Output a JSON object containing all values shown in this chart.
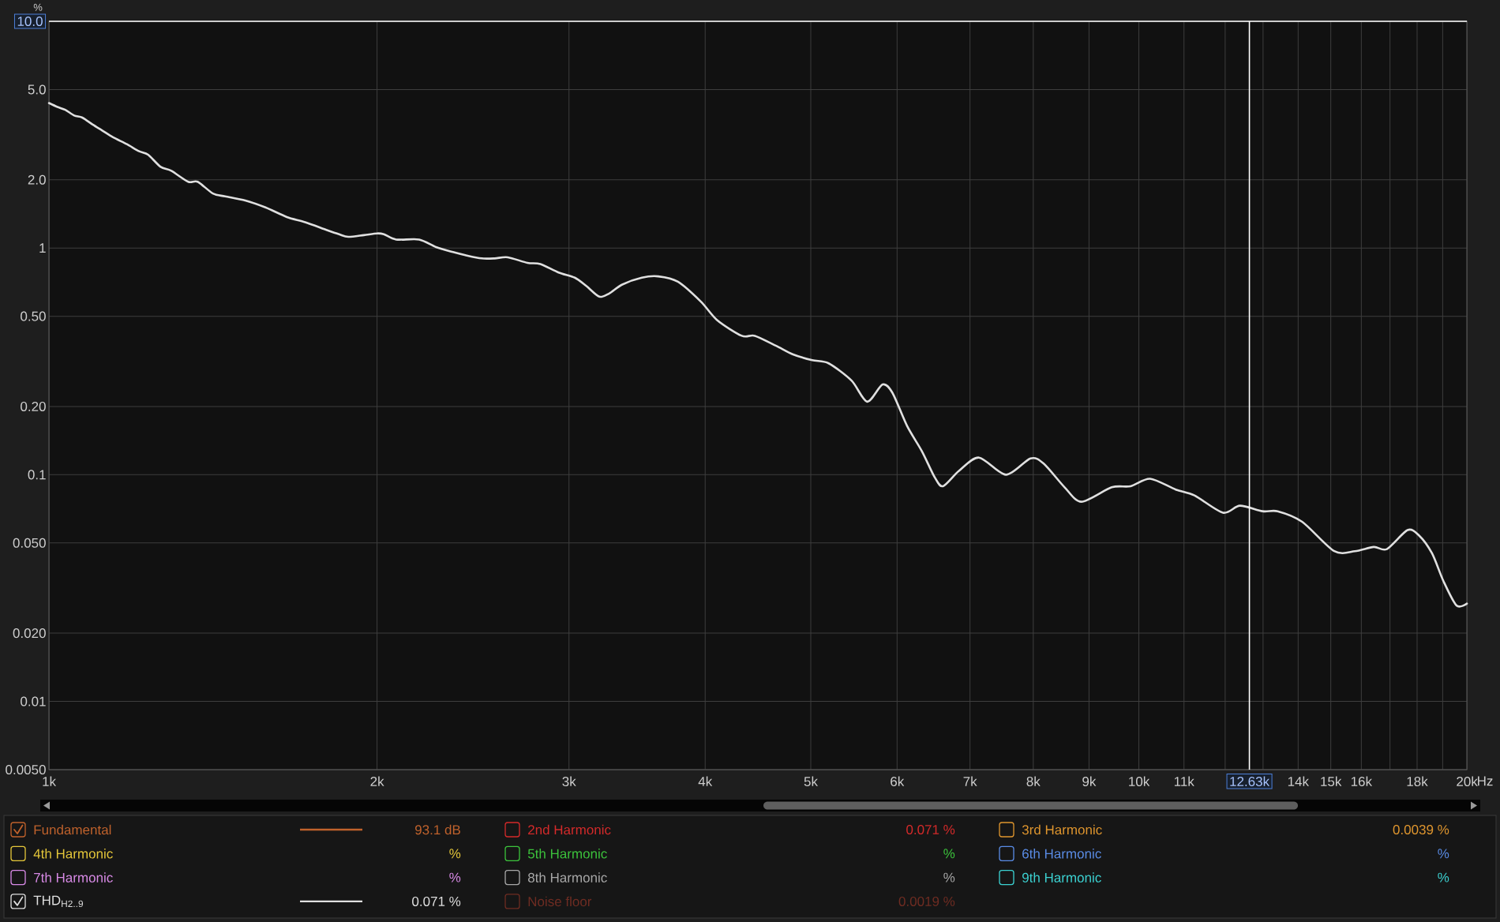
{
  "chart_data": {
    "type": "line",
    "log": "xy",
    "grid": true,
    "legend": "bottom",
    "xlabel": "Hz",
    "ylabel": "%",
    "x": [
      1000,
      1018,
      1035,
      1055,
      1073,
      1097,
      1119,
      1145,
      1179,
      1210,
      1233,
      1266,
      1295,
      1342,
      1369,
      1414,
      1451,
      1514,
      1580,
      1653,
      1718,
      1799,
      1846,
      1882,
      1945,
      2000,
      2029,
      2082,
      2186,
      2265,
      2348,
      2410,
      2494,
      2564,
      2636,
      2748,
      2824,
      2935,
      3037,
      3112,
      3199,
      3266,
      3357,
      3499,
      3623,
      3777,
      3965,
      4104,
      4322,
      4443,
      4648,
      4811,
      5015,
      5192,
      5450,
      5633,
      5819,
      5941,
      6129,
      6323,
      6500,
      6612,
      6838,
      7134,
      7553,
      7955,
      8178,
      8548,
      8858,
      9441,
      9824,
      10240,
      10811,
      11247,
      11944,
      12380,
      12988,
      13408,
      14119,
      15112,
      15786,
      16427,
      16890,
      17643,
      18072,
      18579,
      19031,
      19565,
      20000
    ],
    "xlim": [
      1000,
      20000
    ],
    "ylim": [
      0.005,
      10
    ],
    "xticks": [
      {
        "value": 1000,
        "label": "1k"
      },
      {
        "value": 2000,
        "label": "2k"
      },
      {
        "value": 3000,
        "label": "3k"
      },
      {
        "value": 4000,
        "label": "4k"
      },
      {
        "value": 5000,
        "label": "5k"
      },
      {
        "value": 6000,
        "label": "6k"
      },
      {
        "value": 7000,
        "label": "7k"
      },
      {
        "value": 8000,
        "label": "8k"
      },
      {
        "value": 9000,
        "label": "9k"
      },
      {
        "value": 10000,
        "label": "10k"
      },
      {
        "value": 11000,
        "label": "11k"
      },
      {
        "value": 12000,
        "label": null
      },
      {
        "value": 13000,
        "label": null
      },
      {
        "value": 14000,
        "label": "14k"
      },
      {
        "value": 15000,
        "label": "15k"
      },
      {
        "value": 16000,
        "label": "16k"
      },
      {
        "value": 17000,
        "label": null
      },
      {
        "value": 18000,
        "label": "18k"
      },
      {
        "value": 19000,
        "label": null
      },
      {
        "value": 20000,
        "label": "20k"
      }
    ],
    "yticks": [
      {
        "value": 0.005,
        "label": "0.0050"
      },
      0.01,
      {
        "value": 0.02,
        "label": "0.020"
      },
      {
        "value": 0.05,
        "label": "0.050"
      },
      0.1,
      {
        "value": 0.2,
        "label": "0.20"
      },
      {
        "value": 0.5,
        "label": "0.50"
      },
      1,
      {
        "value": 2,
        "label": "2.0"
      },
      {
        "value": 5,
        "label": "5.0"
      }
    ],
    "series": [
      {
        "name": "Fundamental",
        "color": "#c0622c",
        "line_style": "solid",
        "values": [
          null,
          null,
          null,
          null,
          null,
          null,
          null,
          null,
          null,
          null,
          null,
          null,
          null,
          null,
          null,
          null,
          null,
          null,
          null,
          null,
          null,
          null,
          null,
          null,
          null,
          null,
          null,
          null,
          null,
          null,
          null,
          null,
          null,
          null,
          null,
          null,
          null,
          null,
          null,
          null,
          null,
          null,
          null,
          null,
          null,
          null,
          null,
          null,
          null,
          null,
          null,
          null,
          null,
          null,
          null,
          null,
          null,
          null,
          null,
          null,
          null,
          null,
          null,
          null,
          null,
          null,
          null,
          null,
          null,
          null,
          null,
          null,
          null,
          null,
          null,
          null,
          null,
          null,
          null,
          null,
          null,
          null,
          null,
          null,
          null,
          null,
          null,
          null,
          null
        ]
      },
      {
        "name": "2nd Harmonic",
        "color": "#d42a2a",
        "values": [
          null,
          null,
          null,
          null,
          null,
          null,
          null,
          null,
          null,
          null,
          null,
          null,
          null,
          null,
          null,
          null,
          null,
          null,
          null,
          null,
          null,
          null,
          null,
          null,
          null,
          null,
          null,
          null,
          null,
          null,
          null,
          null,
          null,
          null,
          null,
          null,
          null,
          null,
          null,
          null,
          null,
          null,
          null,
          null,
          null,
          null,
          null,
          null,
          null,
          null,
          null,
          null,
          null,
          null,
          null,
          null,
          null,
          null,
          null,
          null,
          null,
          null,
          null,
          null,
          null,
          null,
          null,
          null,
          null,
          null,
          null,
          null,
          null,
          null,
          null,
          null,
          null,
          null,
          null,
          null,
          null,
          null,
          null,
          null,
          null,
          null,
          null,
          null,
          null
        ]
      },
      {
        "name": "3rd Harmonic",
        "color": "#e0962e",
        "values": [
          null,
          null,
          null,
          null,
          null,
          null,
          null,
          null,
          null,
          null,
          null,
          null,
          null,
          null,
          null,
          null,
          null,
          null,
          null,
          null,
          null,
          null,
          null,
          null,
          null,
          null,
          null,
          null,
          null,
          null,
          null,
          null,
          null,
          null,
          null,
          null,
          null,
          null,
          null,
          null,
          null,
          null,
          null,
          null,
          null,
          null,
          null,
          null,
          null,
          null,
          null,
          null,
          null,
          null,
          null,
          null,
          null,
          null,
          null,
          null,
          null,
          null,
          null,
          null,
          null,
          null,
          null,
          null,
          null,
          null,
          null,
          null,
          null,
          null,
          null,
          null,
          null,
          null,
          null,
          null,
          null,
          null,
          null,
          null,
          null,
          null,
          null,
          null,
          null
        ]
      },
      {
        "name": "4th Harmonic",
        "color": "#e6c83a",
        "values": [
          null,
          null,
          null,
          null,
          null,
          null,
          null,
          null,
          null,
          null,
          null,
          null,
          null,
          null,
          null,
          null,
          null,
          null,
          null,
          null,
          null,
          null,
          null,
          null,
          null,
          null,
          null,
          null,
          null,
          null,
          null,
          null,
          null,
          null,
          null,
          null,
          null,
          null,
          null,
          null,
          null,
          null,
          null,
          null,
          null,
          null,
          null,
          null,
          null,
          null,
          null,
          null,
          null,
          null,
          null,
          null,
          null,
          null,
          null,
          null,
          null,
          null,
          null,
          null,
          null,
          null,
          null,
          null,
          null,
          null,
          null,
          null,
          null,
          null,
          null,
          null,
          null,
          null,
          null,
          null,
          null,
          null,
          null,
          null,
          null,
          null,
          null,
          null,
          null
        ]
      },
      {
        "name": "5th Harmonic",
        "color": "#3cc43c",
        "values": [
          null,
          null,
          null,
          null,
          null,
          null,
          null,
          null,
          null,
          null,
          null,
          null,
          null,
          null,
          null,
          null,
          null,
          null,
          null,
          null,
          null,
          null,
          null,
          null,
          null,
          null,
          null,
          null,
          null,
          null,
          null,
          null,
          null,
          null,
          null,
          null,
          null,
          null,
          null,
          null,
          null,
          null,
          null,
          null,
          null,
          null,
          null,
          null,
          null,
          null,
          null,
          null,
          null,
          null,
          null,
          null,
          null,
          null,
          null,
          null,
          null,
          null,
          null,
          null,
          null,
          null,
          null,
          null,
          null,
          null,
          null,
          null,
          null,
          null,
          null,
          null,
          null,
          null,
          null,
          null,
          null,
          null,
          null,
          null,
          null,
          null,
          null,
          null,
          null
        ]
      },
      {
        "name": "6th Harmonic",
        "color": "#5a8ce6",
        "values": [
          null,
          null,
          null,
          null,
          null,
          null,
          null,
          null,
          null,
          null,
          null,
          null,
          null,
          null,
          null,
          null,
          null,
          null,
          null,
          null,
          null,
          null,
          null,
          null,
          null,
          null,
          null,
          null,
          null,
          null,
          null,
          null,
          null,
          null,
          null,
          null,
          null,
          null,
          null,
          null,
          null,
          null,
          null,
          null,
          null,
          null,
          null,
          null,
          null,
          null,
          null,
          null,
          null,
          null,
          null,
          null,
          null,
          null,
          null,
          null,
          null,
          null,
          null,
          null,
          null,
          null,
          null,
          null,
          null,
          null,
          null,
          null,
          null,
          null,
          null,
          null,
          null,
          null,
          null,
          null,
          null,
          null,
          null,
          null,
          null,
          null,
          null,
          null,
          null
        ]
      },
      {
        "name": "7th Harmonic",
        "color": "#d88ae6",
        "values": [
          null,
          null,
          null,
          null,
          null,
          null,
          null,
          null,
          null,
          null,
          null,
          null,
          null,
          null,
          null,
          null,
          null,
          null,
          null,
          null,
          null,
          null,
          null,
          null,
          null,
          null,
          null,
          null,
          null,
          null,
          null,
          null,
          null,
          null,
          null,
          null,
          null,
          null,
          null,
          null,
          null,
          null,
          null,
          null,
          null,
          null,
          null,
          null,
          null,
          null,
          null,
          null,
          null,
          null,
          null,
          null,
          null,
          null,
          null,
          null,
          null,
          null,
          null,
          null,
          null,
          null,
          null,
          null,
          null,
          null,
          null,
          null,
          null,
          null,
          null,
          null,
          null,
          null,
          null,
          null,
          null,
          null,
          null,
          null,
          null,
          null,
          null,
          null,
          null
        ]
      },
      {
        "name": "8th Harmonic",
        "color": "#a8a8a8",
        "values": [
          null,
          null,
          null,
          null,
          null,
          null,
          null,
          null,
          null,
          null,
          null,
          null,
          null,
          null,
          null,
          null,
          null,
          null,
          null,
          null,
          null,
          null,
          null,
          null,
          null,
          null,
          null,
          null,
          null,
          null,
          null,
          null,
          null,
          null,
          null,
          null,
          null,
          null,
          null,
          null,
          null,
          null,
          null,
          null,
          null,
          null,
          null,
          null,
          null,
          null,
          null,
          null,
          null,
          null,
          null,
          null,
          null,
          null,
          null,
          null,
          null,
          null,
          null,
          null,
          null,
          null,
          null,
          null,
          null,
          null,
          null,
          null,
          null,
          null,
          null,
          null,
          null,
          null,
          null,
          null,
          null,
          null,
          null,
          null,
          null,
          null,
          null,
          null,
          null
        ]
      },
      {
        "name": "9th Harmonic",
        "color": "#3cd2d2",
        "values": [
          null,
          null,
          null,
          null,
          null,
          null,
          null,
          null,
          null,
          null,
          null,
          null,
          null,
          null,
          null,
          null,
          null,
          null,
          null,
          null,
          null,
          null,
          null,
          null,
          null,
          null,
          null,
          null,
          null,
          null,
          null,
          null,
          null,
          null,
          null,
          null,
          null,
          null,
          null,
          null,
          null,
          null,
          null,
          null,
          null,
          null,
          null,
          null,
          null,
          null,
          null,
          null,
          null,
          null,
          null,
          null,
          null,
          null,
          null,
          null,
          null,
          null,
          null,
          null,
          null,
          null,
          null,
          null,
          null,
          null,
          null,
          null,
          null,
          null,
          null,
          null,
          null,
          null,
          null,
          null,
          null,
          null,
          null,
          null,
          null,
          null,
          null,
          null,
          null
        ]
      },
      {
        "name": "THD$_{H2..9}$",
        "color": "#e0e0e0",
        "line_style": "solid",
        "values": [
          4.36,
          4.19,
          4.07,
          3.84,
          3.76,
          3.5,
          3.3,
          3.08,
          2.87,
          2.67,
          2.58,
          2.28,
          2.19,
          1.96,
          1.96,
          1.74,
          1.69,
          1.62,
          1.51,
          1.37,
          1.3,
          1.2,
          1.15,
          1.12,
          1.14,
          1.16,
          1.15,
          1.09,
          1.09,
          1.01,
          0.96,
          0.93,
          0.9,
          0.9,
          0.91,
          0.86,
          0.85,
          0.78,
          0.74,
          0.68,
          0.61,
          0.63,
          0.69,
          0.74,
          0.75,
          0.71,
          0.58,
          0.48,
          0.41,
          0.41,
          0.37,
          0.34,
          0.32,
          0.31,
          0.26,
          0.21,
          0.25,
          0.23,
          0.164,
          0.127,
          0.097,
          0.089,
          0.104,
          0.119,
          0.1,
          0.118,
          0.112,
          0.088,
          0.076,
          0.088,
          0.089,
          0.096,
          0.086,
          0.081,
          0.068,
          0.073,
          0.069,
          0.069,
          0.062,
          0.046,
          0.046,
          0.048,
          0.047,
          0.057,
          0.054,
          0.045,
          0.034,
          0.0265,
          0.027
        ]
      },
      {
        "name": "Noise floor",
        "color": "#6e2c22",
        "values": [
          null,
          null,
          null,
          null,
          null,
          null,
          null,
          null,
          null,
          null,
          null,
          null,
          null,
          null,
          null,
          null,
          null,
          null,
          null,
          null,
          null,
          null,
          null,
          null,
          null,
          null,
          null,
          null,
          null,
          null,
          null,
          null,
          null,
          null,
          null,
          null,
          null,
          null,
          null,
          null,
          null,
          null,
          null,
          null,
          null,
          null,
          null,
          null,
          null,
          null,
          null,
          null,
          null,
          null,
          null,
          null,
          null,
          null,
          null,
          null,
          null,
          null,
          null,
          null,
          null,
          null,
          null,
          null,
          null,
          null,
          null,
          null,
          null,
          null,
          null,
          null,
          null,
          null,
          null,
          null,
          null,
          null,
          null,
          null,
          null,
          null,
          null,
          null,
          null
        ]
      }
    ],
    "ref_lines": [
      {
        "axis": "x",
        "value": 12630,
        "label": "12.63k",
        "color": "#ffffff"
      },
      {
        "axis": "y",
        "value": 10,
        "label": "10.0",
        "color": "#ffffff"
      }
    ],
    "annotations": [
      "93.1 dB",
      "0.071 %",
      "0.0039 %",
      "%",
      "%",
      "%",
      "%",
      "%",
      "%",
      "0.071 %",
      "0.0019 %"
    ]
  }
}
